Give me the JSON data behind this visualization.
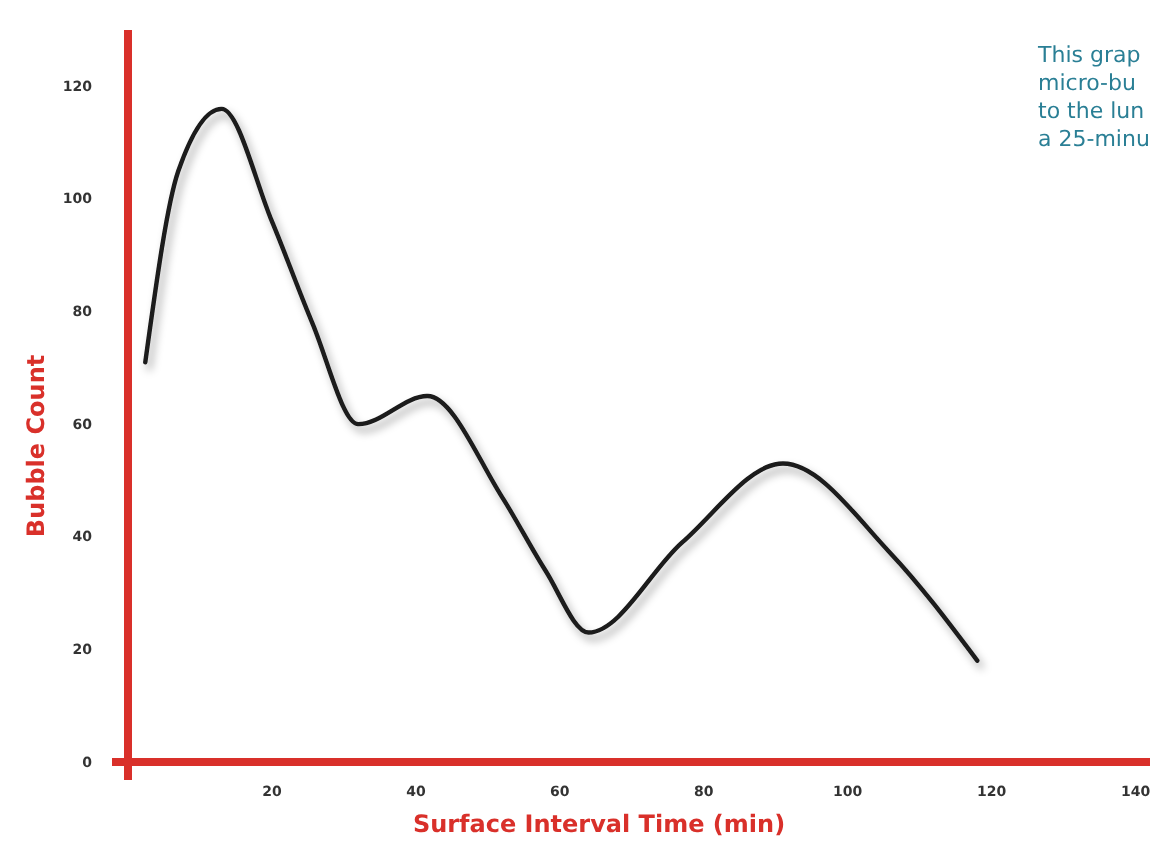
{
  "chart_data": {
    "type": "line",
    "xlabel": "Surface Interval Time (min)",
    "ylabel": "Bubble Count",
    "x": [
      2.4,
      7,
      13,
      20,
      25.6,
      32,
      41.6,
      52,
      58,
      64,
      77,
      91,
      106,
      118
    ],
    "series": [
      {
        "color": "#1a1a1a",
        "values": [
          71,
          105,
          116,
          96,
          78,
          60,
          65,
          47,
          34,
          23,
          39,
          53,
          37,
          18
        ]
      }
    ],
    "xlim": [
      0,
      142
    ],
    "xticks": [
      20,
      40,
      60,
      80,
      100,
      120,
      140
    ],
    "ylim": [
      0,
      130
    ],
    "yticks": [
      0,
      20,
      40,
      60,
      80,
      100,
      120
    ],
    "grid": false,
    "marker": "none",
    "line_style": "solid",
    "annotations": [
      "This grap",
      "micro-bu",
      "to the lun",
      "a 25-minu"
    ]
  }
}
